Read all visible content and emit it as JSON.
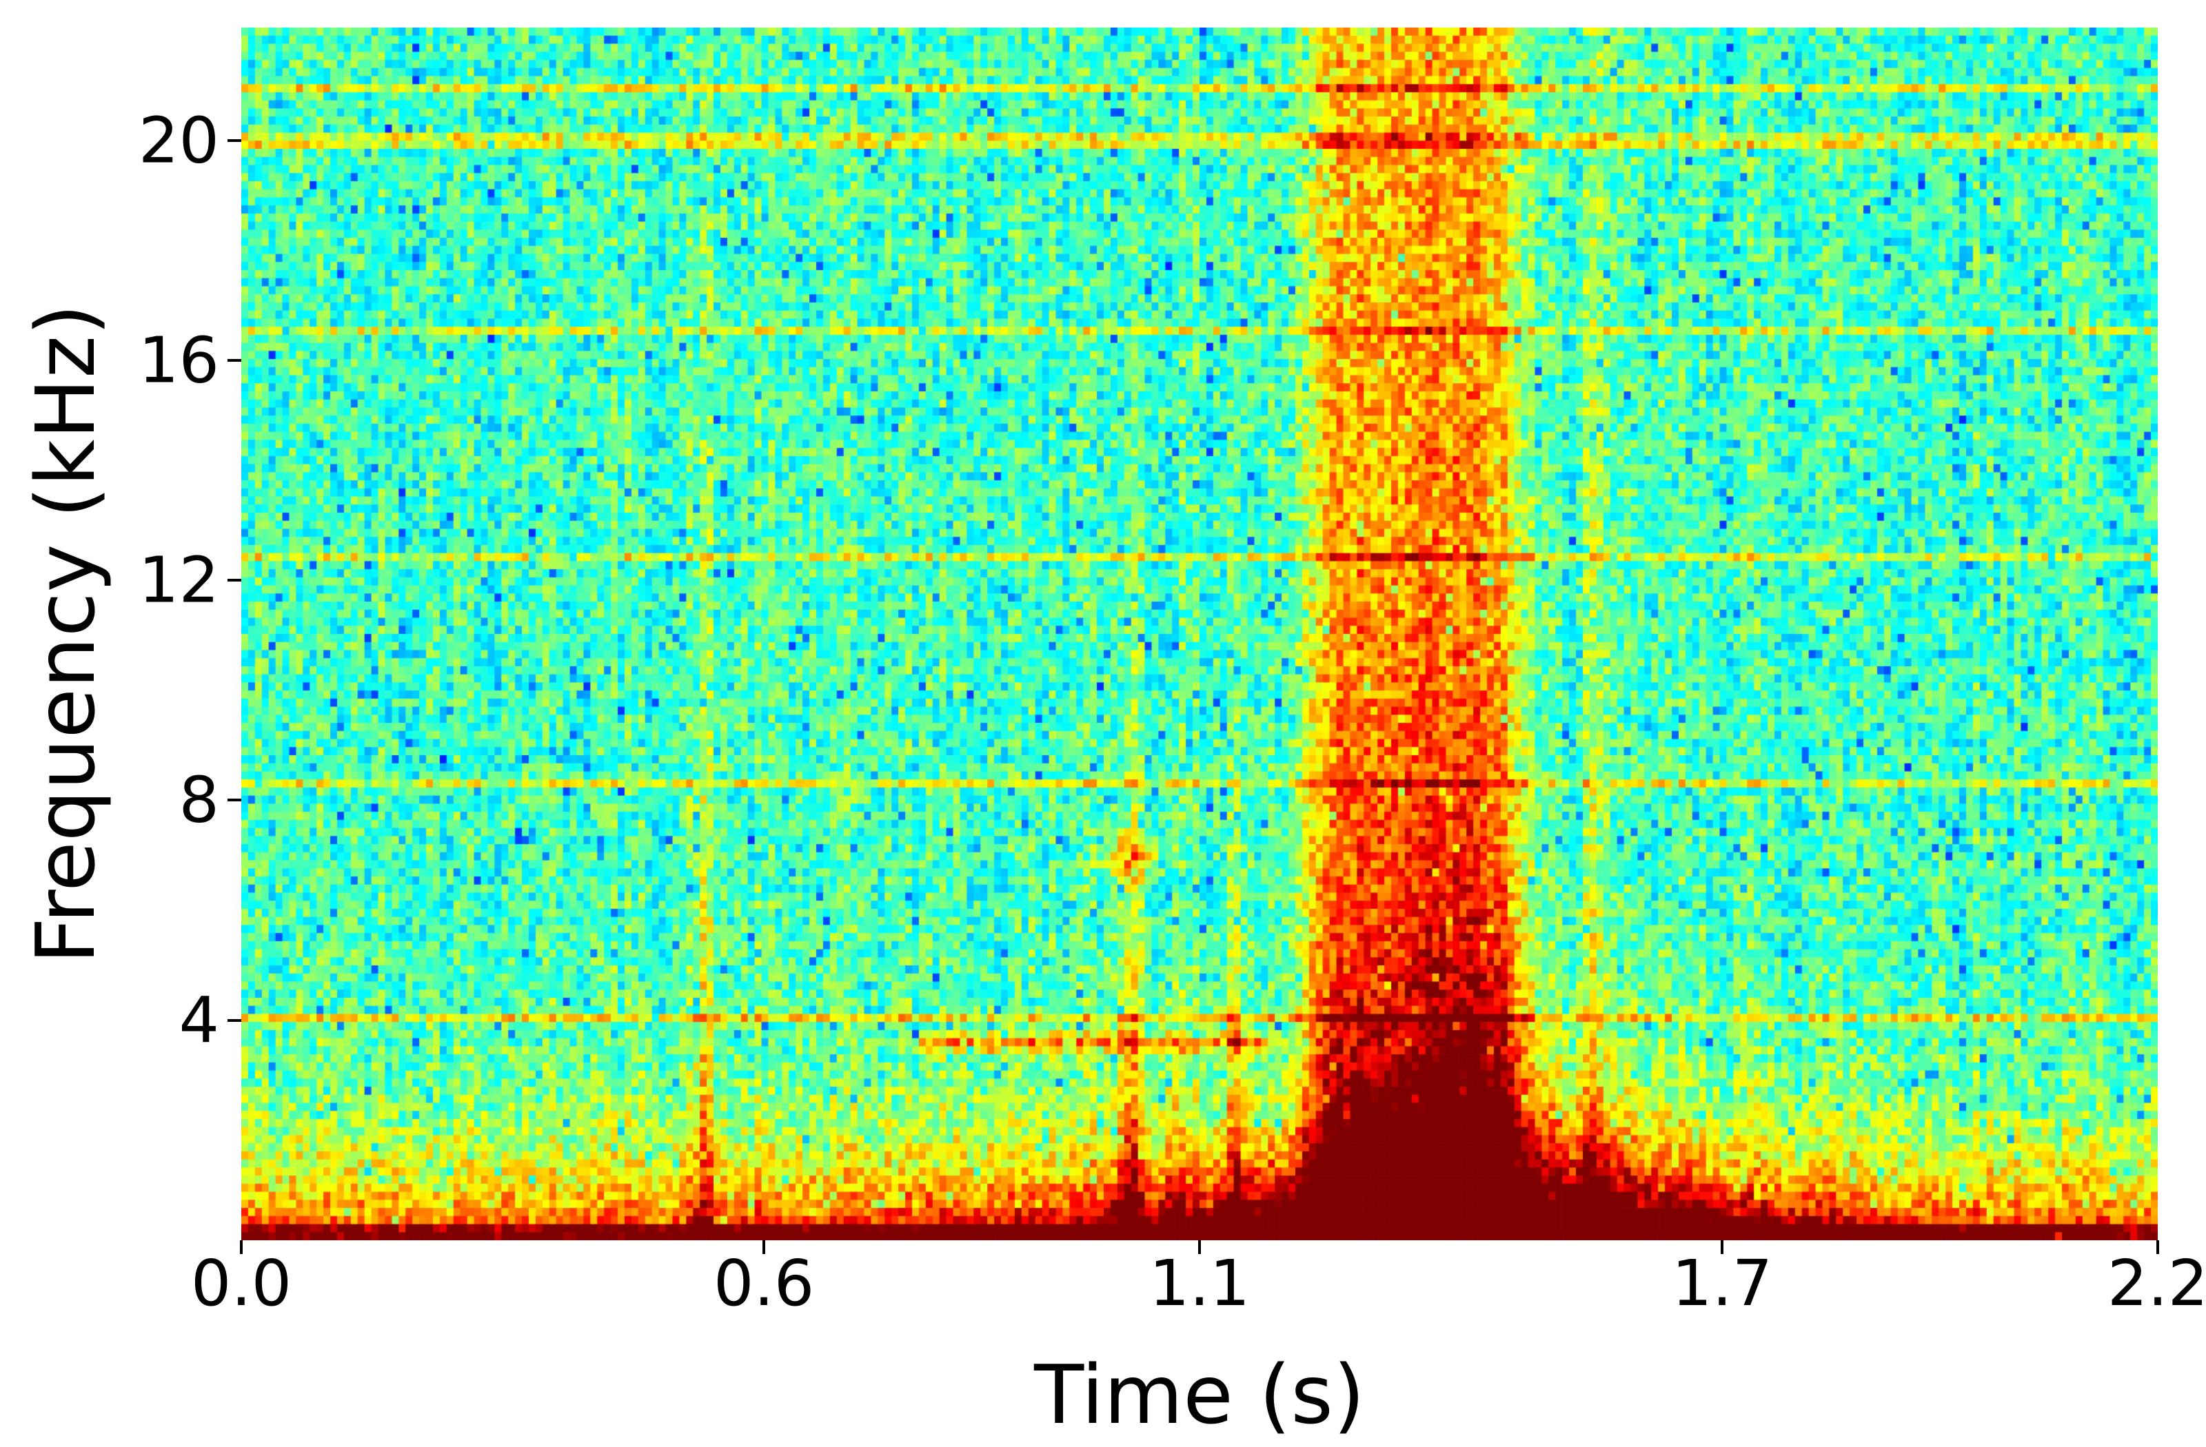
{
  "figure": {
    "background": "#ffffff",
    "text_color": "#000000"
  },
  "chart_data": {
    "type": "heatmap",
    "subtype": "spectrogram",
    "title": "",
    "xlabel": "Time (s)",
    "ylabel": "Frequency (kHz)",
    "xlim": [
      0.0,
      2.2
    ],
    "ylim": [
      0.0,
      22.05
    ],
    "xticks": [
      {
        "value": 0.0,
        "label": "0.0"
      },
      {
        "value": 0.6,
        "label": "0.6"
      },
      {
        "value": 1.1,
        "label": "1.1"
      },
      {
        "value": 1.7,
        "label": "1.7"
      },
      {
        "value": 2.2,
        "label": "2.2"
      }
    ],
    "yticks": [
      {
        "value": 4,
        "label": "4"
      },
      {
        "value": 8,
        "label": "8"
      },
      {
        "value": 12,
        "label": "12"
      },
      {
        "value": 16,
        "label": "16"
      },
      {
        "value": 20,
        "label": "20"
      }
    ],
    "colormap": "jet",
    "grid": false,
    "legend": false,
    "resolution": {
      "time_bins": 280,
      "freq_bins": 150
    },
    "noise": {
      "seed": 42,
      "floor": 0.44,
      "jitter": 0.22,
      "blue_speck_prob": 0.05,
      "blue_speck_drop": 0.14,
      "column_jitter": 0.04
    },
    "features": {
      "low_frequency_band": {
        "amplitude": 0.42,
        "decay_khz": 1.4,
        "time_bulge_center_s": 1.3,
        "time_bulge_sigma_s": 0.55,
        "time_bulge_gain": 0.5
      },
      "bottom_edge_row": {
        "freq_khz": 0.35,
        "amplitude": 0.22
      },
      "broadband_burst": {
        "center_s": 1.345,
        "half_width_s": 0.125,
        "amplitude": 0.5,
        "freq_decay_khz": 10.0,
        "flat_fraction": 0.45
      },
      "low_freq_blob": {
        "center_s": 1.42,
        "amplitude": 0.5,
        "freq_decay_khz": 2.5,
        "width_base_s": 0.09,
        "width_extra_s": 0.3,
        "width_freq_decay_khz": 1.6
      },
      "transient_columns": [
        {
          "time_s": 0.53,
          "width_s": 0.012,
          "amplitude": 0.22,
          "freq_extent_khz": 12
        },
        {
          "time_s": 1.02,
          "width_s": 0.014,
          "amplitude": 0.34,
          "freq_extent_khz": 7
        },
        {
          "time_s": 1.07,
          "width_s": 0.008,
          "amplitude": 0.2,
          "freq_extent_khz": 5
        },
        {
          "time_s": 1.14,
          "width_s": 0.009,
          "amplitude": 0.3,
          "freq_extent_khz": 6
        },
        {
          "time_s": 1.55,
          "width_s": 0.012,
          "amplitude": 0.16,
          "freq_extent_khz": 40
        }
      ],
      "horizontal_lines": [
        {
          "freq_khz": 4.1,
          "amplitude": 0.18
        },
        {
          "freq_khz": 8.25,
          "amplitude": 0.16
        },
        {
          "freq_khz": 12.4,
          "amplitude": 0.16
        },
        {
          "freq_khz": 16.5,
          "amplitude": 0.15
        },
        {
          "freq_khz": 20.0,
          "amplitude": 0.17
        },
        {
          "freq_khz": 20.9,
          "amplitude": 0.17
        }
      ],
      "hot_streak": {
        "freq_khz": 3.6,
        "sigma_khz": 0.18,
        "t_start_s": 0.78,
        "t_end_s": 1.18,
        "amplitude": 0.3
      },
      "hot_spot": {
        "freq_khz": 7.0,
        "time_s": 1.02,
        "sigma_khz": 0.4,
        "sigma_s": 0.03,
        "amplitude": 0.25
      }
    }
  }
}
